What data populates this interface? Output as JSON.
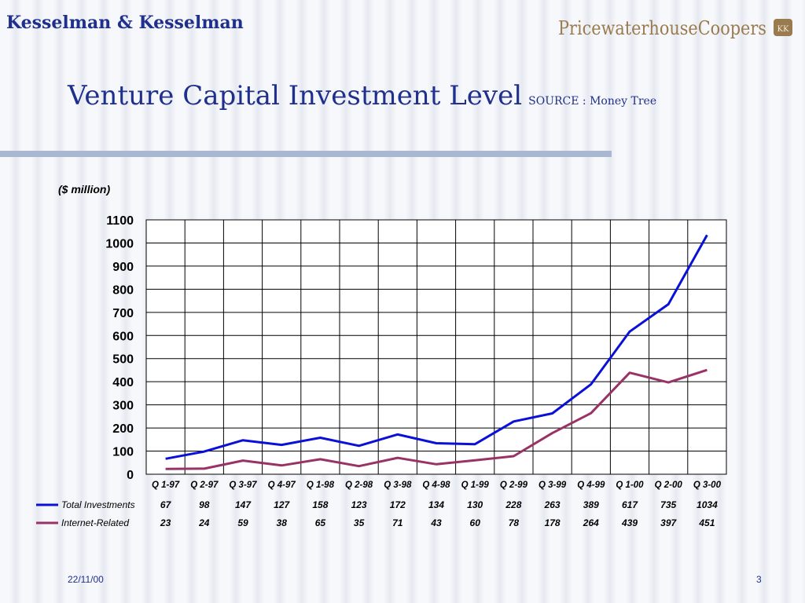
{
  "header": {
    "firm": "Kesselman & Kesselman",
    "logo_text": "PricewaterhouseCoopers",
    "title": "Venture Capital Investment Level",
    "source": "SOURCE : Money Tree"
  },
  "footer": {
    "date": "22/11/00",
    "page": "3"
  },
  "colors": {
    "title": "#1f2f8c",
    "total": "#0a10d8",
    "internet": "#993366"
  },
  "chart_data": {
    "type": "line",
    "title": "",
    "unit_label": "($ million)",
    "ylim": [
      0,
      1100
    ],
    "yticks": [
      0,
      100,
      200,
      300,
      400,
      500,
      600,
      700,
      800,
      900,
      1000,
      1100
    ],
    "grid": true,
    "categories": [
      "Q 1-97",
      "Q 2-97",
      "Q 3-97",
      "Q 4-97",
      "Q 1-98",
      "Q 2-98",
      "Q 3-98",
      "Q 4-98",
      "Q 1-99",
      "Q 2-99",
      "Q 3-99",
      "Q 4-99",
      "Q 1-00",
      "Q 2-00",
      "Q 3-00"
    ],
    "series": [
      {
        "name": "Total Investments",
        "color": "#0a10d8",
        "values": [
          67,
          98,
          147,
          127,
          158,
          123,
          172,
          134,
          130,
          228,
          263,
          389,
          617,
          735,
          1034
        ]
      },
      {
        "name": "Internet-Related",
        "color": "#993366",
        "values": [
          23,
          24,
          59,
          38,
          65,
          35,
          71,
          43,
          60,
          78,
          178,
          264,
          439,
          397,
          451
        ]
      }
    ],
    "legend": "bottom-left data table"
  }
}
